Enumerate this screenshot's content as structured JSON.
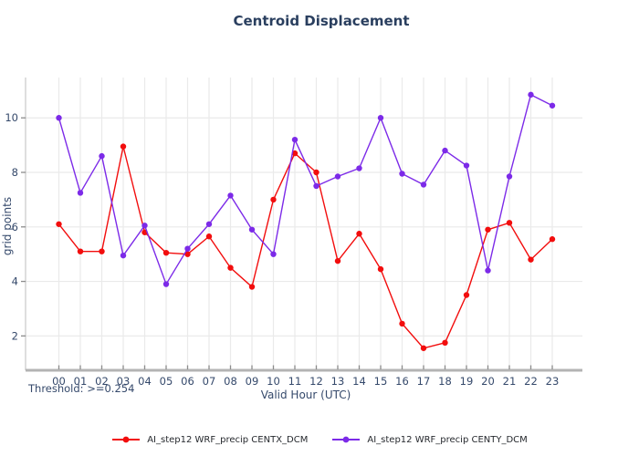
{
  "title": "Centroid Displacement",
  "threshold_note": "Threshold: >=0.254",
  "chart_data": {
    "type": "line",
    "title": "Centroid Displacement",
    "xlabel": "Valid Hour (UTC)",
    "ylabel": "grid points",
    "grid": true,
    "legend_position": "bottom-center",
    "categories": [
      "00",
      "01",
      "02",
      "03",
      "04",
      "05",
      "06",
      "07",
      "08",
      "09",
      "10",
      "11",
      "12",
      "13",
      "14",
      "15",
      "16",
      "17",
      "18",
      "19",
      "20",
      "21",
      "22",
      "23"
    ],
    "yticks": [
      2,
      4,
      6,
      8,
      10
    ],
    "ylim": [
      0.74,
      11.48
    ],
    "series": [
      {
        "name": "AI_step12 WRF_precip CENTX_DCM",
        "color": "#f20d0d",
        "marker": "circle",
        "values": [
          6.1,
          5.1,
          5.1,
          8.95,
          5.8,
          5.05,
          5.0,
          5.65,
          4.5,
          3.8,
          7.0,
          8.7,
          8.0,
          4.75,
          5.75,
          4.45,
          2.45,
          1.55,
          1.75,
          3.5,
          5.9,
          6.15,
          4.8,
          5.55
        ]
      },
      {
        "name": "AI_step12 WRF_precip CENTY_DCM",
        "color": "#7c2ae8",
        "marker": "circle",
        "values": [
          10.0,
          7.25,
          8.6,
          4.95,
          6.05,
          3.9,
          5.2,
          6.1,
          7.15,
          5.9,
          5.0,
          9.2,
          7.5,
          7.85,
          8.15,
          10.0,
          7.95,
          7.55,
          8.8,
          8.25,
          4.4,
          7.85,
          10.85,
          10.45
        ]
      }
    ],
    "colors": {
      "title_text": "#2a3f5f",
      "axis_text": "#35496b",
      "gridline": "#eaeaea",
      "bottom_spine": "#b3b3b3",
      "left_spine": "#c8c8c8",
      "tick_mark": "#8c8c8c",
      "background": "#ffffff"
    }
  }
}
